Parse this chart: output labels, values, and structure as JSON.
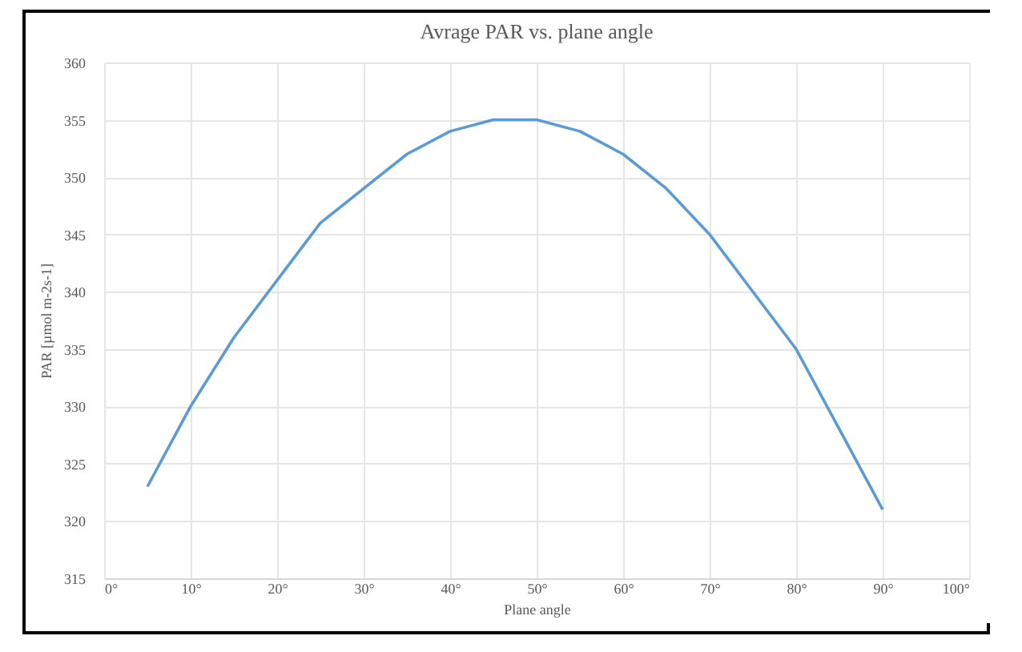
{
  "chart_data": {
    "type": "line",
    "title": "Avrage PAR vs. plane angle",
    "xlabel": "Plane angle",
    "ylabel": "PAR [µmol m-2s-1]",
    "x": [
      5,
      10,
      15,
      20,
      25,
      30,
      35,
      40,
      45,
      50,
      55,
      60,
      65,
      70,
      75,
      80,
      85,
      90
    ],
    "series": [
      {
        "color": "#5b9bd5",
        "values": [
          323,
          330,
          336,
          341,
          346,
          349,
          352,
          354,
          355,
          355,
          354,
          352,
          349,
          345,
          340,
          335,
          328,
          321
        ]
      }
    ],
    "xlim": [
      0,
      100
    ],
    "xticks": [
      {
        "value": 0,
        "label": "0°"
      },
      {
        "value": 10,
        "label": "10°"
      },
      {
        "value": 20,
        "label": "20°"
      },
      {
        "value": 30,
        "label": "30°"
      },
      {
        "value": 40,
        "label": "40°"
      },
      {
        "value": 50,
        "label": "50°"
      },
      {
        "value": 60,
        "label": "60°"
      },
      {
        "value": 70,
        "label": "70°"
      },
      {
        "value": 80,
        "label": "80°"
      },
      {
        "value": 90,
        "label": "90°"
      },
      {
        "value": 100,
        "label": "100°"
      }
    ],
    "ylim": [
      315,
      360
    ],
    "yticks": [
      315,
      320,
      325,
      330,
      335,
      340,
      345,
      350,
      355,
      360
    ],
    "grid": true,
    "marker": "none"
  }
}
